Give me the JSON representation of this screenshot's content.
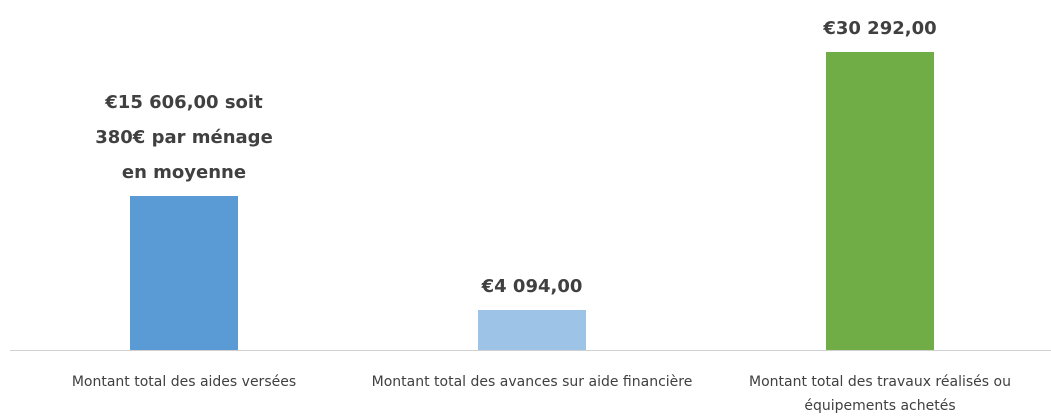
{
  "chart_data": {
    "type": "bar",
    "categories": [
      "Montant total des aides versées",
      "Montant total des avances sur aide financière",
      "Montant total des travaux réalisés ou équipements achetés"
    ],
    "values": [
      15606,
      4094,
      30292
    ],
    "value_labels": [
      "€15 606,00 soit 380€ par ménage en moyenne",
      "€4 094,00",
      "€30 292,00"
    ],
    "colors": [
      "#5b9bd5",
      "#9dc3e6",
      "#70ad47"
    ]
  }
}
